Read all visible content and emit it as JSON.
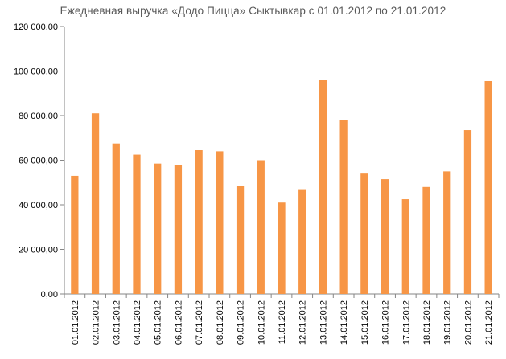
{
  "chart_data": {
    "type": "bar",
    "title": "Ежедневная выручка «Додо Пицца» Сыктывкар с 01.01.2012 по 21.01.2012",
    "xlabel": "",
    "ylabel": "",
    "ylim": [
      0,
      120000
    ],
    "yticks": [
      0,
      20000,
      40000,
      60000,
      80000,
      100000,
      120000
    ],
    "ytick_labels": [
      "0,00",
      "20 000,00",
      "40 000,00",
      "60 000,00",
      "80 000,00",
      "100 000,00",
      "120 000,00"
    ],
    "categories": [
      "01.01.2012",
      "02.01.2012",
      "03.01.2012",
      "04.01.2012",
      "05.01.2012",
      "06.01.2012",
      "07.01.2012",
      "08.01.2012",
      "09.01.2012",
      "10.01.2012",
      "11.01.2012",
      "12.01.2012",
      "13.01.2012",
      "14.01.2012",
      "15.01.2012",
      "16.01.2012",
      "17.01.2012",
      "18.01.2012",
      "19.01.2012",
      "20.01.2012",
      "21.01.2012"
    ],
    "values": [
      53000,
      81000,
      67500,
      62500,
      58500,
      58000,
      64500,
      64000,
      48500,
      60000,
      41000,
      47000,
      96000,
      78000,
      54000,
      51500,
      42500,
      48000,
      55000,
      73500,
      95500
    ],
    "bar_color": "#F79646",
    "grid": false,
    "legend": "none"
  }
}
